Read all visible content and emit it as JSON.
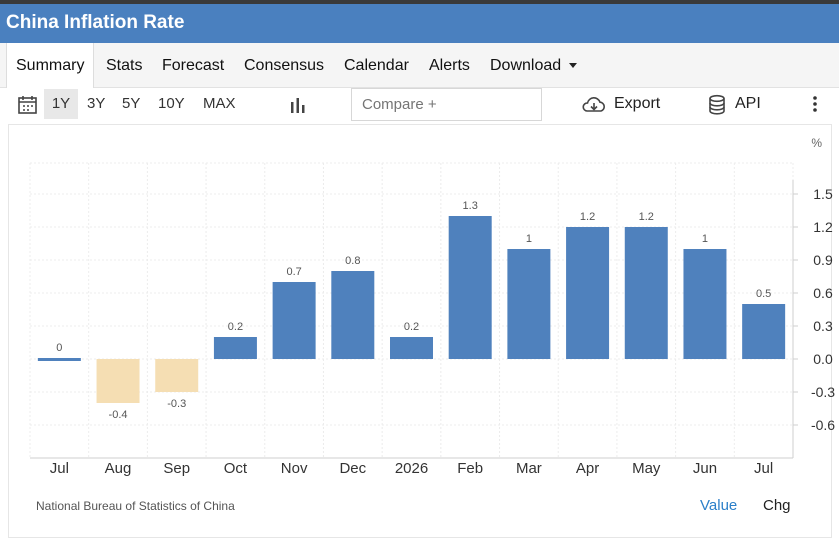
{
  "app": {
    "title": "China Inflation Rate"
  },
  "tabs": [
    {
      "label": "Summary"
    },
    {
      "label": "Stats"
    },
    {
      "label": "Forecast"
    },
    {
      "label": "Consensus"
    },
    {
      "label": "Calendar"
    },
    {
      "label": "Alerts"
    },
    {
      "label": "Download"
    }
  ],
  "toolbar": {
    "ranges": [
      "1Y",
      "3Y",
      "5Y",
      "10Y",
      "MAX"
    ],
    "selected_range": "1Y",
    "compare_placeholder": "Compare +",
    "export_label": "Export",
    "api_label": "API"
  },
  "icons": {
    "calendar": "calendar-icon",
    "chart_type": "bar-chart-icon",
    "export": "cloud-download-icon",
    "api": "database-icon",
    "more": "more-vertical-icon"
  },
  "colors": {
    "header": "#4a80bf",
    "positive_bar": "#4f81bd",
    "negative_bar": "#f5deb3",
    "toggle_active": "#2a7fc9"
  },
  "chart_data": {
    "type": "bar",
    "unit": "%",
    "categories": [
      "Jul",
      "Aug",
      "Sep",
      "Oct",
      "Nov",
      "Dec",
      "2026",
      "Feb",
      "Mar",
      "Apr",
      "May",
      "Jun",
      "Jul"
    ],
    "values": [
      0,
      -0.4,
      -0.3,
      0.2,
      0.7,
      0.8,
      0.2,
      1.3,
      1,
      1.2,
      1.2,
      1,
      0.5
    ],
    "data_labels": [
      "0",
      "-0.4",
      "-0.3",
      "0.2",
      "0.7",
      "0.8",
      "0.2",
      "1.3",
      "1",
      "1.2",
      "1.2",
      "1",
      "0.5"
    ],
    "y_ticks": [
      1.5,
      1.2,
      0.9,
      0.6,
      0.3,
      0.0,
      -0.3,
      -0.6
    ],
    "y_tick_labels": [
      "1.5",
      "1.2",
      "0.9",
      "0.6",
      "0.3",
      "0.0",
      "-0.3",
      "-0.6"
    ],
    "ylim": [
      -0.9,
      1.8
    ],
    "grid": true,
    "y_axis_side": "right"
  },
  "footer": {
    "source": "National Bureau of Statistics of China",
    "value_label": "Value",
    "chg_label": "Chg"
  }
}
